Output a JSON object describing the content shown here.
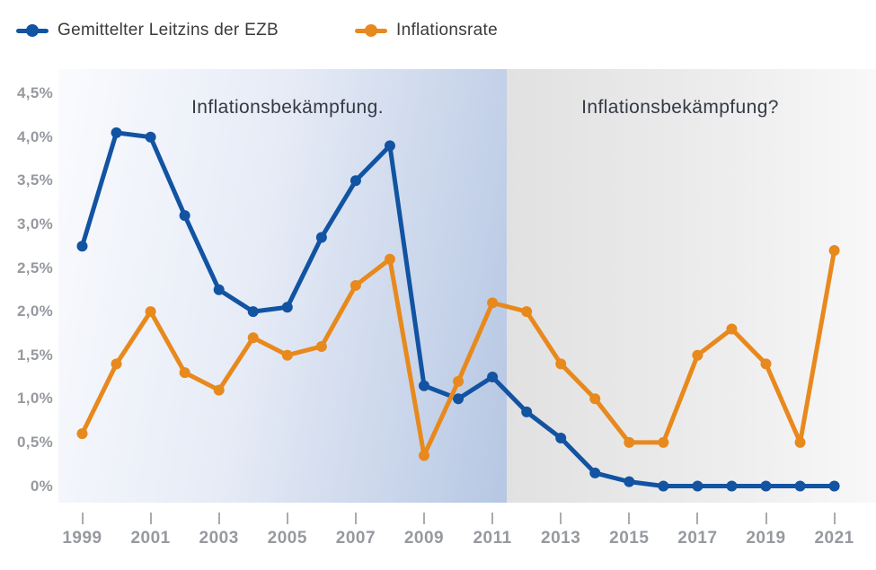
{
  "legend": {
    "items": [
      {
        "label": "Gemittelter Leitzins der EZB",
        "color": "#1253a2"
      },
      {
        "label": "Inflationsrate",
        "color": "#e8891d"
      }
    ]
  },
  "annotations": {
    "left": "Inflationsbekämpfung.",
    "right": "Inflationsbekämpfung?"
  },
  "chart_data": {
    "type": "line",
    "title": "",
    "xlabel": "",
    "ylabel": "",
    "x": [
      1999,
      2000,
      2001,
      2002,
      2003,
      2004,
      2005,
      2006,
      2007,
      2008,
      2009,
      2010,
      2011,
      2012,
      2013,
      2014,
      2015,
      2016,
      2017,
      2018,
      2019,
      2020,
      2021
    ],
    "series": [
      {
        "name": "Gemittelter Leitzins der EZB",
        "color": "#1253a2",
        "values": [
          2.75,
          4.05,
          4.0,
          3.1,
          2.25,
          2.0,
          2.05,
          2.85,
          3.5,
          3.9,
          1.15,
          1.0,
          1.25,
          0.85,
          0.55,
          0.15,
          0.05,
          0.0,
          0.0,
          0.0,
          0.0,
          0.0,
          0.0
        ]
      },
      {
        "name": "Inflationsrate",
        "color": "#e8891d",
        "values": [
          0.6,
          1.4,
          2.0,
          1.3,
          1.1,
          1.7,
          1.5,
          1.6,
          2.3,
          2.6,
          0.35,
          1.2,
          2.1,
          2.0,
          1.4,
          1.0,
          0.5,
          0.5,
          1.5,
          1.8,
          1.4,
          0.5,
          2.7
        ]
      }
    ],
    "ylim": [
      0,
      4.5
    ],
    "y_ticks": [
      {
        "value": 4.5,
        "label": "4,5%"
      },
      {
        "value": 4.0,
        "label": "4,0%"
      },
      {
        "value": 3.5,
        "label": "3,5%"
      },
      {
        "value": 3.0,
        "label": "3,0%"
      },
      {
        "value": 2.5,
        "label": "2,5%"
      },
      {
        "value": 2.0,
        "label": "2,0%"
      },
      {
        "value": 1.5,
        "label": "1,5%"
      },
      {
        "value": 1.0,
        "label": "1,0%"
      },
      {
        "value": 0.5,
        "label": "0,5%"
      },
      {
        "value": 0.0,
        "label": "0%"
      }
    ],
    "x_ticks": [
      {
        "year": 1999,
        "label": "1999"
      },
      {
        "year": 2001,
        "label": "2001"
      },
      {
        "year": 2003,
        "label": "2003"
      },
      {
        "year": 2005,
        "label": "2005"
      },
      {
        "year": 2007,
        "label": "2007"
      },
      {
        "year": 2009,
        "label": "2009"
      },
      {
        "year": 2011,
        "label": "2011"
      },
      {
        "year": 2013,
        "label": "2013"
      },
      {
        "year": 2015,
        "label": "2015"
      },
      {
        "year": 2017,
        "label": "2017"
      },
      {
        "year": 2019,
        "label": "2019"
      },
      {
        "year": 2021,
        "label": "2021"
      }
    ],
    "grid": false,
    "legend_position": "top",
    "regions": [
      {
        "label": "Inflationsbekämpfung.",
        "x_start": 1999,
        "x_end": 2011.4,
        "style": "blue-gradient"
      },
      {
        "label": "Inflationsbekämpfung?",
        "x_start": 2011.4,
        "x_end": 2022.2,
        "style": "gray-gradient"
      }
    ]
  },
  "colors": {
    "series_blue": "#1253a2",
    "series_orange": "#e8891d",
    "axis_label": "#96999e",
    "annotation_text": "#343a44",
    "band_blue_end": "#b6c7e3",
    "band_gray_start": "#e1e1e2"
  }
}
